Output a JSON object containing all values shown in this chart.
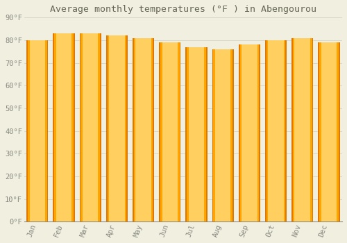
{
  "title": "Average monthly temperatures (°F ) in Abengourou",
  "months": [
    "Jan",
    "Feb",
    "Mar",
    "Apr",
    "May",
    "Jun",
    "Jul",
    "Aug",
    "Sep",
    "Oct",
    "Nov",
    "Dec"
  ],
  "values": [
    80,
    83,
    83,
    82,
    81,
    79,
    77,
    76,
    78,
    80,
    81,
    79
  ],
  "bar_color_light": "#FFD060",
  "bar_color_main": "#FFA500",
  "bar_color_dark": "#E07800",
  "background_color": "#F0EFE0",
  "grid_color": "#D8D8C8",
  "ylim": [
    0,
    90
  ],
  "yticks": [
    0,
    10,
    20,
    30,
    40,
    50,
    60,
    70,
    80,
    90
  ],
  "ytick_labels": [
    "0°F",
    "10°F",
    "20°F",
    "30°F",
    "40°F",
    "50°F",
    "60°F",
    "70°F",
    "80°F",
    "90°F"
  ],
  "title_fontsize": 9.5,
  "tick_fontsize": 7.5,
  "font_color": "#888880",
  "bar_width": 0.82,
  "figsize": [
    5.0,
    3.5
  ],
  "dpi": 100
}
